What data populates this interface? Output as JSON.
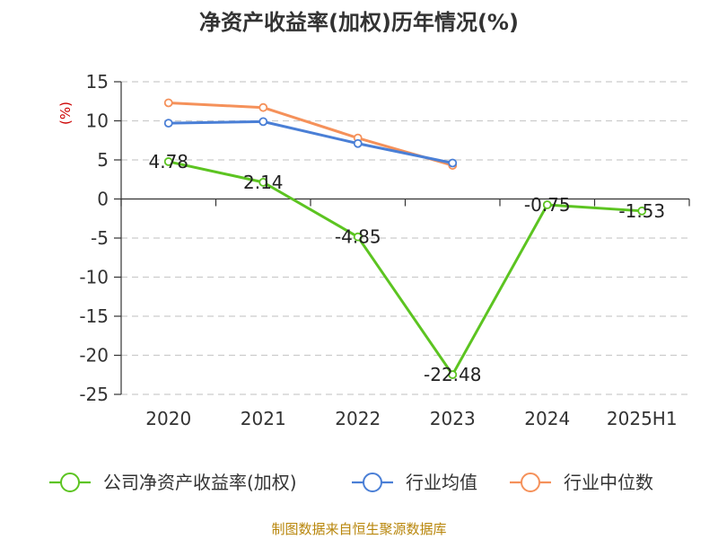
{
  "chart_data": {
    "type": "line",
    "title": "净资产收益率(加权)历年情况(%)",
    "ylabel": "(%)",
    "categories": [
      "2020",
      "2021",
      "2022",
      "2023",
      "2024",
      "2025H1"
    ],
    "ylim": [
      -25,
      15
    ],
    "yticks": [
      15,
      10,
      5,
      0,
      -5,
      -10,
      -15,
      -20,
      -25
    ],
    "grid": true,
    "legend_position": "bottom",
    "series": [
      {
        "name": "公司净资产收益率(加权)",
        "color": "#5cc421",
        "values": [
          4.78,
          2.14,
          -4.85,
          -22.48,
          -0.75,
          -1.53
        ],
        "labels": [
          "4.78",
          "2.14",
          "-4.85",
          "-22.48",
          "-0.75",
          "-1.53"
        ]
      },
      {
        "name": "行业均值",
        "color": "#4a7fd6",
        "values": [
          9.7,
          9.9,
          7.1,
          4.6,
          null,
          null
        ]
      },
      {
        "name": "行业中位数",
        "color": "#f5915a",
        "values": [
          12.3,
          11.7,
          7.8,
          4.3,
          null,
          null
        ]
      }
    ]
  },
  "source": "制图数据来自恒生聚源数据库"
}
